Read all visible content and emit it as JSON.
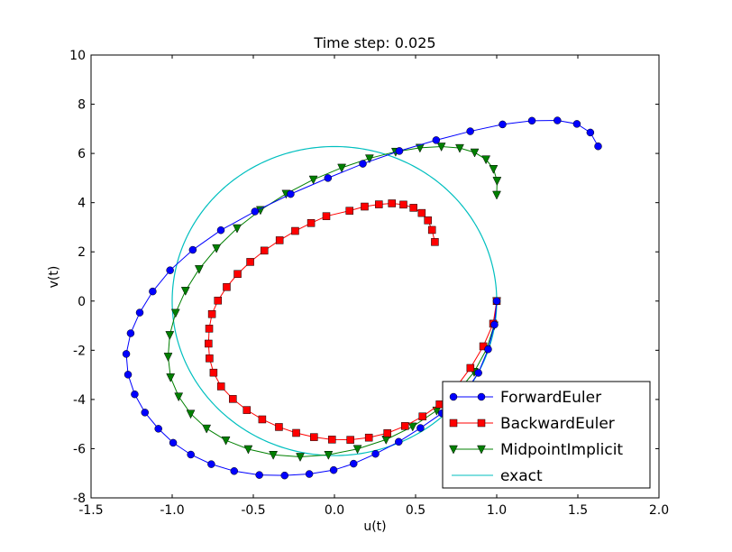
{
  "chart_data": {
    "type": "line",
    "title": "Time step: 0.025",
    "xlabel": "u(t)",
    "ylabel": "v(t)",
    "xlim": [
      -1.5,
      2.0
    ],
    "ylim": [
      -8,
      10
    ],
    "xticks": [
      "-1.5",
      "-1.0",
      "-0.5",
      "0.0",
      "0.5",
      "1.0",
      "1.5",
      "2.0"
    ],
    "yticks": [
      "-8",
      "-6",
      "-4",
      "-2",
      "0",
      "2",
      "4",
      "6",
      "8",
      "10"
    ],
    "grid": false,
    "legend_position": "lower right",
    "series": [
      {
        "name": "ForwardEuler",
        "color": "#0000ff",
        "marker": "circle",
        "x": [
          1.0,
          0.986,
          0.947,
          0.887,
          0.787,
          0.662,
          0.53,
          0.396,
          0.253,
          0.118,
          -0.005,
          -0.155,
          -0.307,
          -0.463,
          -0.618,
          -0.759,
          -0.885,
          -0.994,
          -1.085,
          -1.168,
          -1.231,
          -1.272,
          -1.283,
          -1.256,
          -1.2,
          -1.12,
          -1.013,
          -0.873,
          -0.7,
          -0.49,
          -0.27,
          -0.04,
          0.175,
          0.4,
          0.627,
          0.837,
          1.036,
          1.217,
          1.374,
          1.494,
          1.577,
          1.625
        ],
        "y": [
          0.0,
          -0.96,
          -1.96,
          -2.92,
          -3.89,
          -4.56,
          -5.16,
          -5.72,
          -6.21,
          -6.61,
          -6.87,
          -7.03,
          -7.09,
          -7.07,
          -6.91,
          -6.63,
          -6.24,
          -5.76,
          -5.19,
          -4.53,
          -3.79,
          -2.99,
          -2.15,
          -1.31,
          -0.47,
          0.39,
          1.25,
          2.08,
          2.88,
          3.64,
          4.35,
          5.0,
          5.58,
          6.1,
          6.54,
          6.9,
          7.18,
          7.33,
          7.34,
          7.2,
          6.85,
          6.29
        ]
      },
      {
        "name": "BackwardEuler",
        "color": "#ff0000",
        "marker": "square",
        "x": [
          1.0,
          0.978,
          0.917,
          0.838,
          0.743,
          0.648,
          0.543,
          0.435,
          0.326,
          0.212,
          0.098,
          -0.015,
          -0.126,
          -0.236,
          -0.342,
          -0.445,
          -0.54,
          -0.626,
          -0.699,
          -0.745,
          -0.77,
          -0.776,
          -0.772,
          -0.755,
          -0.718,
          -0.664,
          -0.597,
          -0.519,
          -0.432,
          -0.338,
          -0.242,
          -0.144,
          -0.05,
          0.093,
          0.186,
          0.274,
          0.354,
          0.425,
          0.487,
          0.538,
          0.576,
          0.601,
          0.619
        ],
        "y": [
          0.0,
          -0.92,
          -1.84,
          -2.72,
          -3.56,
          -4.2,
          -4.69,
          -5.08,
          -5.37,
          -5.55,
          -5.64,
          -5.63,
          -5.53,
          -5.36,
          -5.12,
          -4.81,
          -4.43,
          -3.98,
          -3.47,
          -2.91,
          -2.33,
          -1.73,
          -1.12,
          -0.53,
          0.02,
          0.57,
          1.1,
          1.59,
          2.05,
          2.47,
          2.85,
          3.17,
          3.45,
          3.67,
          3.84,
          3.93,
          3.97,
          3.92,
          3.79,
          3.58,
          3.28,
          2.89,
          2.4
        ]
      },
      {
        "name": "MidpointImplicit",
        "color": "#008000",
        "marker": "triangle-down",
        "x": [
          1.0,
          0.984,
          0.937,
          0.861,
          0.758,
          0.63,
          0.482,
          0.318,
          0.142,
          -0.037,
          -0.211,
          -0.377,
          -0.531,
          -0.669,
          -0.788,
          -0.886,
          -0.96,
          -1.01,
          -1.025,
          -1.015,
          -0.979,
          -0.918,
          -0.834,
          -0.727,
          -0.6,
          -0.456,
          -0.298,
          -0.13,
          0.045,
          0.216,
          0.377,
          0.527,
          0.659,
          0.772,
          0.864,
          0.934,
          0.98,
          1.002,
          1.0
        ],
        "y": [
          0.0,
          -0.99,
          -1.96,
          -2.88,
          -3.7,
          -4.45,
          -5.1,
          -5.63,
          -6.01,
          -6.25,
          -6.33,
          -6.25,
          -6.02,
          -5.66,
          -5.18,
          -4.58,
          -3.88,
          -3.1,
          -2.26,
          -1.38,
          -0.48,
          0.42,
          1.3,
          2.15,
          2.96,
          3.7,
          4.36,
          4.94,
          5.42,
          5.8,
          6.07,
          6.23,
          6.28,
          6.22,
          6.04,
          5.76,
          5.37,
          4.89,
          4.32
        ]
      },
      {
        "name": "exact",
        "color": "#00bfbf",
        "marker": "none",
        "type": "ellipse",
        "center": [
          0,
          0
        ],
        "rx": 1.0,
        "ry": 6.28
      }
    ]
  }
}
